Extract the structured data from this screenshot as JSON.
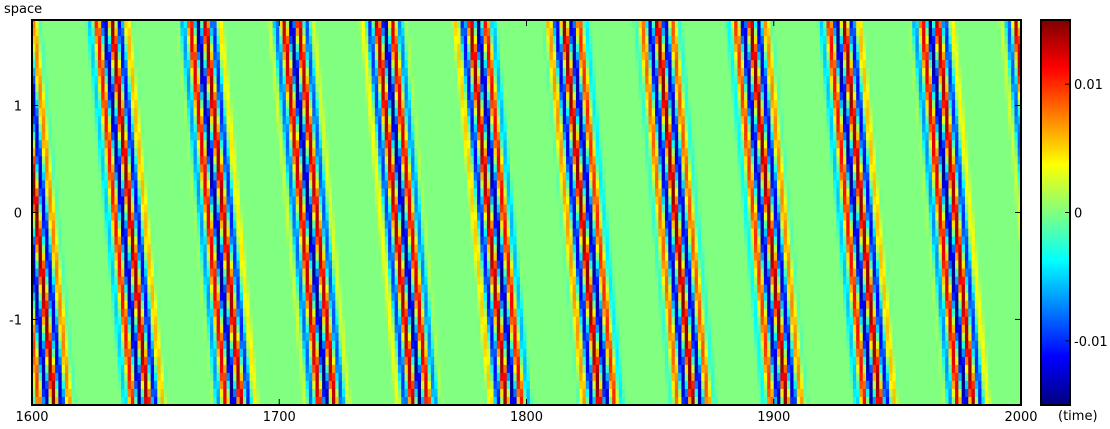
{
  "chart_data": {
    "type": "heatmap",
    "title": "",
    "xlabel": "(time)",
    "ylabel": "space",
    "xlim": [
      1600,
      2000
    ],
    "ylim": [
      -1.8,
      1.8
    ],
    "x_ticks": [
      {
        "value": 1600,
        "label": "1600"
      },
      {
        "value": 1700,
        "label": "1700"
      },
      {
        "value": 1800,
        "label": "1800"
      },
      {
        "value": 1900,
        "label": "1900"
      },
      {
        "value": 2000,
        "label": "2000"
      }
    ],
    "y_ticks": [
      {
        "value": 1,
        "label": "1"
      },
      {
        "value": 0,
        "label": "0"
      },
      {
        "value": -1,
        "label": "-1"
      }
    ],
    "colorbar": {
      "colormap": "jet",
      "range": [
        -0.015,
        0.015
      ],
      "ticks": [
        {
          "value": 0.01,
          "label": "0.01"
        },
        {
          "value": 0,
          "label": "0"
        },
        {
          "value": -0.01,
          "label": "-0.01"
        }
      ]
    },
    "pattern": {
      "description_kind": "traveling wave stripes",
      "amplitude": 0.015,
      "wave_period_time": 6.3,
      "group_period_time": 37,
      "group_active_fraction": 0.55,
      "time_shift_per_unit_space": 4.0
    }
  }
}
